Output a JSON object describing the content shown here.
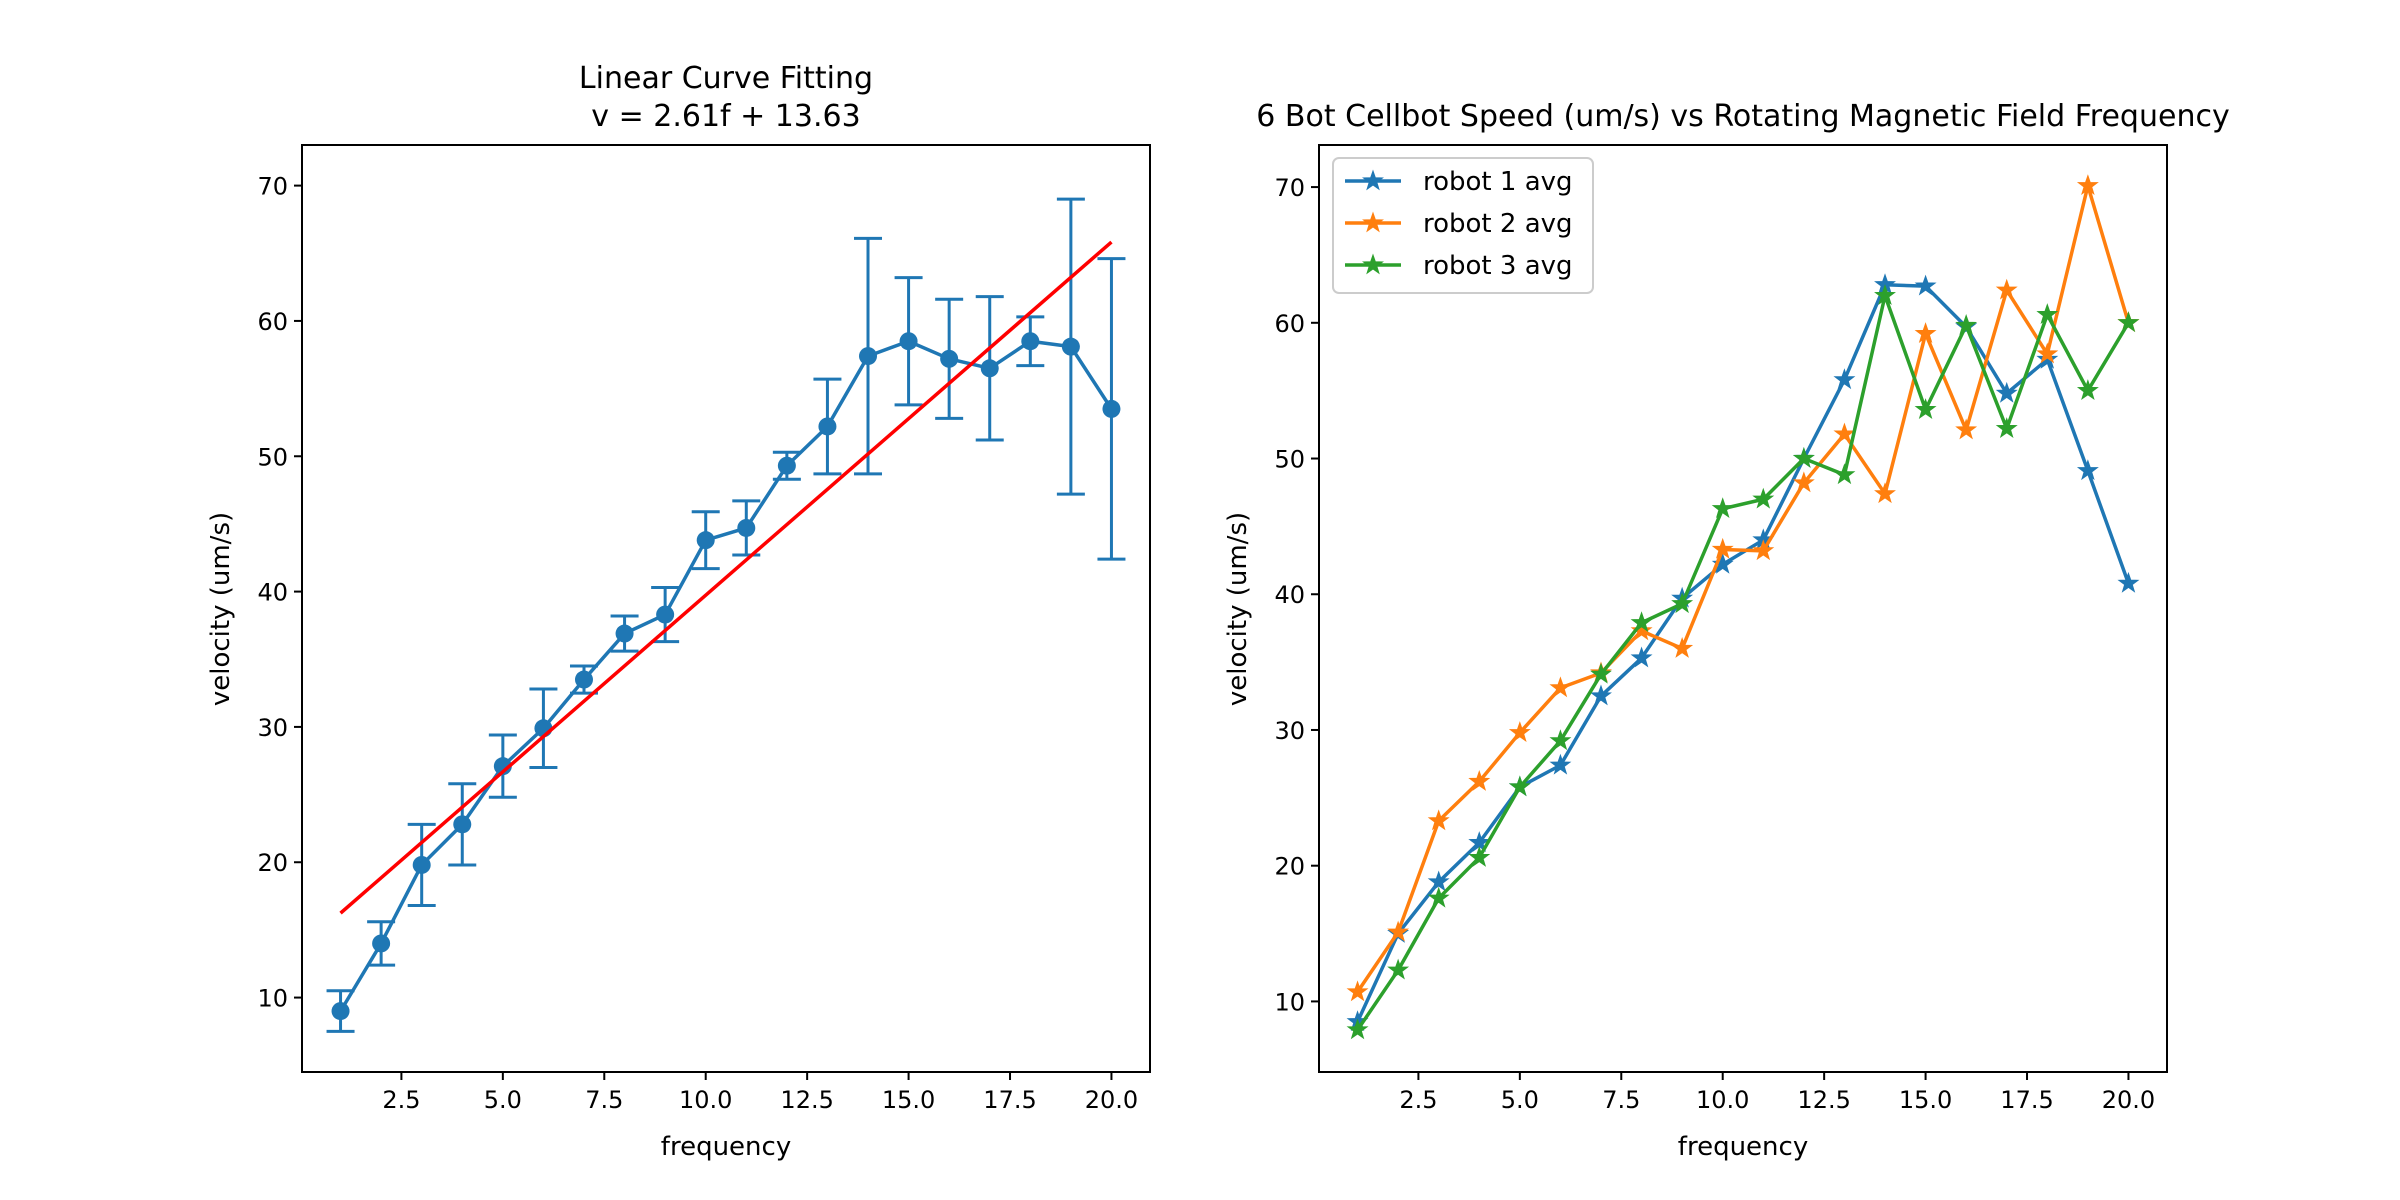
{
  "figure": {
    "background": "#ffffff"
  },
  "chart_data": [
    {
      "type": "line",
      "title": "Linear Curve Fitting",
      "subtitle": "v = 2.61f + 13.63",
      "xlabel": "frequency",
      "ylabel": "velocity (um/s)",
      "xlim": [
        0.05,
        20.95
      ],
      "ylim": [
        4.5,
        73.0
      ],
      "xticks": [
        2.5,
        5.0,
        7.5,
        10.0,
        12.5,
        15.0,
        17.5,
        20.0
      ],
      "xtick_labels": [
        "2.5",
        "5.0",
        "7.5",
        "10.0",
        "12.5",
        "15.0",
        "17.5",
        "20.0"
      ],
      "yticks": [
        10,
        20,
        30,
        40,
        50,
        60,
        70
      ],
      "ytick_labels": [
        "10",
        "20",
        "30",
        "40",
        "50",
        "60",
        "70"
      ],
      "grid": false,
      "series": [
        {
          "color": "#1f77b4",
          "marker": "circle",
          "x": [
            1,
            2,
            3,
            4,
            5,
            6,
            7,
            8,
            9,
            10,
            11,
            12,
            13,
            14,
            15,
            16,
            17,
            18,
            19,
            20
          ],
          "y": [
            9.0,
            14.0,
            19.8,
            22.8,
            27.1,
            29.9,
            33.5,
            36.9,
            38.3,
            43.8,
            44.7,
            49.3,
            52.2,
            57.4,
            58.5,
            57.2,
            56.5,
            58.5,
            58.1,
            53.5
          ],
          "yerr": [
            1.5,
            1.6,
            3.0,
            3.0,
            2.3,
            2.9,
            1.0,
            1.3,
            2.0,
            2.1,
            2.0,
            1.0,
            3.5,
            8.7,
            4.7,
            4.4,
            5.3,
            1.8,
            10.9,
            11.1
          ]
        },
        {
          "color": "#ff0000",
          "marker": "none",
          "x": [
            1,
            20
          ],
          "y": [
            16.24,
            65.83
          ]
        }
      ]
    },
    {
      "type": "line",
      "title": "6 Bot Cellbot Speed (um/s) vs Rotating Magnetic Field Frequency",
      "xlabel": "frequency",
      "ylabel": "velocity (um/s)",
      "xlim": [
        0.05,
        20.95
      ],
      "ylim": [
        4.8,
        73.1
      ],
      "xticks": [
        2.5,
        5.0,
        7.5,
        10.0,
        12.5,
        15.0,
        17.5,
        20.0
      ],
      "xtick_labels": [
        "2.5",
        "5.0",
        "7.5",
        "10.0",
        "12.5",
        "15.0",
        "17.5",
        "20.0"
      ],
      "yticks": [
        10,
        20,
        30,
        40,
        50,
        60,
        70
      ],
      "ytick_labels": [
        "10",
        "20",
        "30",
        "40",
        "50",
        "60",
        "70"
      ],
      "grid": false,
      "legend": "top-left",
      "series": [
        {
          "name": "robot 1 avg",
          "color": "#1f77b4",
          "marker": "star",
          "x": [
            1,
            2,
            3,
            4,
            5,
            6,
            7,
            8,
            9,
            10,
            11,
            12,
            13,
            14,
            15,
            16,
            17,
            18,
            19,
            20
          ],
          "y": [
            8.5,
            15.0,
            18.8,
            21.7,
            25.8,
            27.4,
            32.5,
            35.3,
            39.7,
            42.2,
            44.0,
            50.0,
            55.8,
            62.8,
            62.7,
            59.7,
            54.8,
            57.3,
            49.1,
            40.8
          ]
        },
        {
          "name": "robot 2 avg",
          "color": "#ff7f0e",
          "marker": "star",
          "x": [
            1,
            2,
            3,
            4,
            5,
            6,
            7,
            8,
            9,
            10,
            11,
            12,
            13,
            14,
            15,
            16,
            17,
            18,
            19,
            20
          ],
          "y": [
            10.7,
            15.1,
            23.3,
            26.2,
            29.8,
            33.1,
            34.2,
            37.3,
            36.0,
            43.3,
            43.2,
            48.2,
            51.8,
            47.4,
            59.2,
            52.1,
            62.4,
            57.7,
            70.1,
            60.0
          ]
        },
        {
          "name": "robot 3 avg",
          "color": "#2ca02c",
          "marker": "star",
          "x": [
            1,
            2,
            3,
            4,
            5,
            6,
            7,
            8,
            9,
            10,
            11,
            12,
            13,
            14,
            15,
            16,
            17,
            18,
            19,
            20
          ],
          "y": [
            7.9,
            12.3,
            17.6,
            20.6,
            25.8,
            29.2,
            34.1,
            37.9,
            39.3,
            46.3,
            47.0,
            50.0,
            48.8,
            62.0,
            53.6,
            59.8,
            52.2,
            60.6,
            55.0,
            60.0
          ]
        }
      ]
    }
  ]
}
